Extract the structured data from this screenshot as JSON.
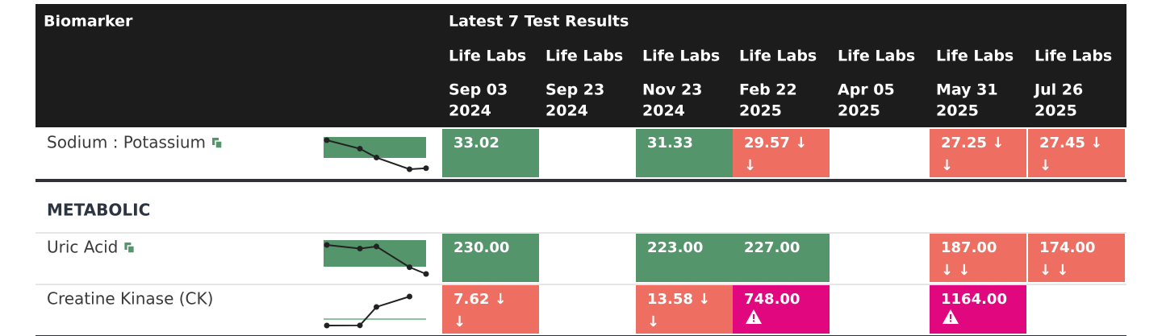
{
  "header": {
    "biomarker": "Biomarker",
    "latest": "Latest 7 Test Results",
    "columns": [
      {
        "lab": "Life Labs",
        "date": [
          "Sep 03",
          "2024"
        ]
      },
      {
        "lab": "Life Labs",
        "date": [
          "Sep 23",
          "2024"
        ]
      },
      {
        "lab": "Life Labs",
        "date": [
          "Nov 23",
          "2024"
        ]
      },
      {
        "lab": "Life Labs",
        "date": [
          "Feb 22",
          "2025"
        ]
      },
      {
        "lab": "Life Labs",
        "date": [
          "Apr 05",
          "2025"
        ]
      },
      {
        "lab": "Life Labs",
        "date": [
          "May 31",
          "2025"
        ]
      },
      {
        "lab": "Life Labs",
        "date": [
          "Jul 26",
          "2025"
        ]
      }
    ]
  },
  "rows": [
    {
      "kind": "biomarker",
      "name": "Sodium : Potassium",
      "linked": true,
      "border": "thick",
      "cells": [
        {
          "lines": [
            "33.02"
          ],
          "status": "normal"
        },
        null,
        {
          "lines": [
            "31.33"
          ],
          "status": "normal"
        },
        {
          "lines": [
            "29.57 ↓",
            "↓"
          ],
          "status": "low"
        },
        null,
        {
          "lines": [
            "27.25 ↓",
            "↓"
          ],
          "status": "low"
        },
        {
          "lines": [
            "27.45 ↓",
            "↓"
          ],
          "status": "low"
        }
      ]
    },
    {
      "kind": "section",
      "name": "METABOLIC"
    },
    {
      "kind": "biomarker",
      "name": "Uric Acid",
      "linked": true,
      "border": "thin",
      "cells": [
        {
          "lines": [
            "230.00"
          ],
          "status": "normal"
        },
        null,
        {
          "lines": [
            "223.00"
          ],
          "status": "normal"
        },
        {
          "lines": [
            "227.00"
          ],
          "status": "normal"
        },
        null,
        {
          "lines": [
            "187.00",
            "↓ ↓"
          ],
          "status": "low"
        },
        {
          "lines": [
            "174.00",
            "↓ ↓"
          ],
          "status": "low"
        }
      ]
    },
    {
      "kind": "biomarker",
      "name": "Creatine Kinase (CK)",
      "linked": false,
      "border": "thick",
      "cells": [
        {
          "lines": [
            "7.62 ↓",
            "↓"
          ],
          "status": "low"
        },
        null,
        {
          "lines": [
            "13.58 ↓",
            "↓"
          ],
          "status": "low"
        },
        {
          "lines": [
            "748.00"
          ],
          "status": "critical"
        },
        null,
        {
          "lines": [
            "1164.00"
          ],
          "status": "critical"
        },
        null
      ]
    }
  ]
}
